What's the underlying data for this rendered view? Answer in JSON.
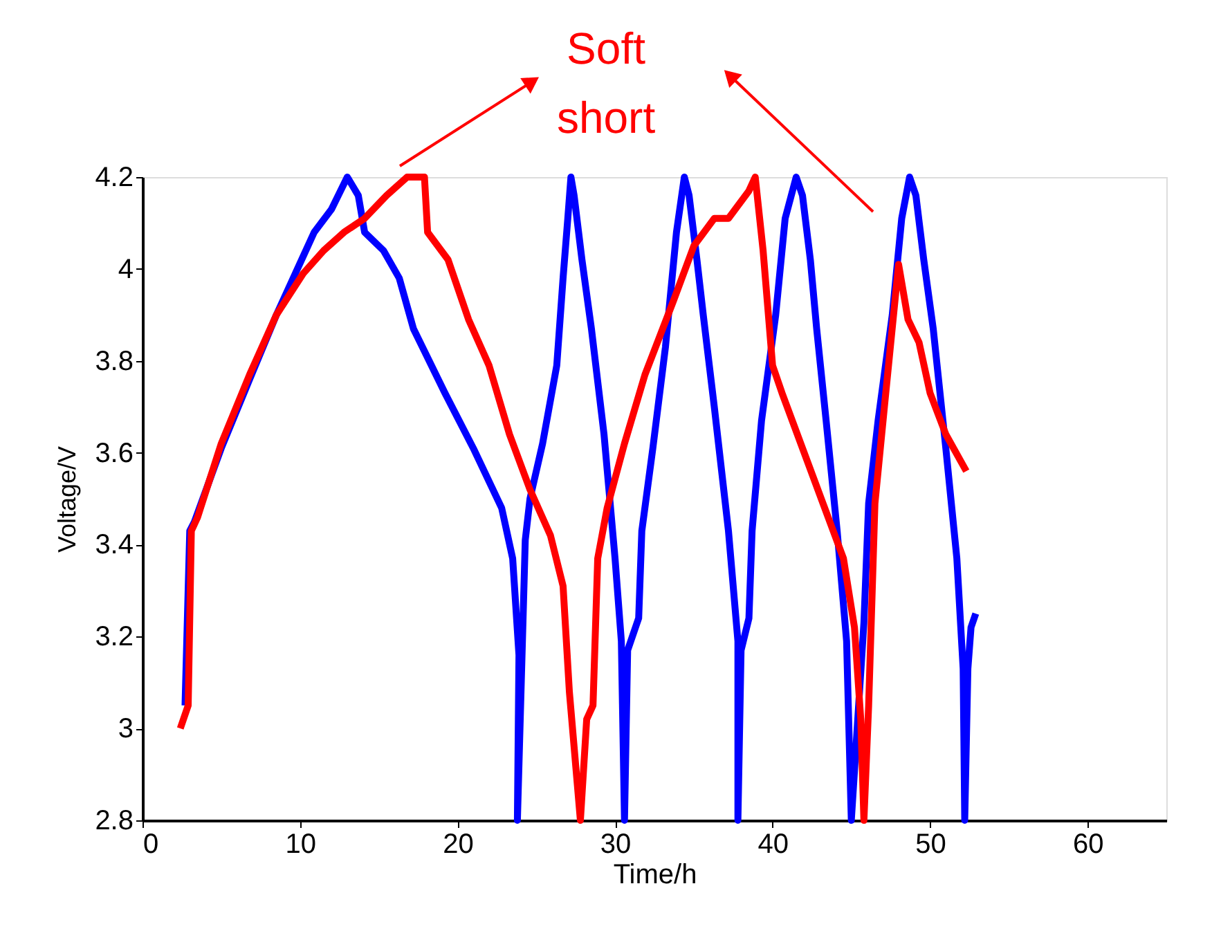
{
  "chart_data": {
    "type": "line",
    "xlabel": "Time/h",
    "ylabel": "Voltage/V",
    "xlim": [
      0,
      65
    ],
    "xticks": [
      0,
      10,
      20,
      30,
      40,
      50,
      60
    ],
    "ylim": [
      2.8,
      4.2
    ],
    "yticks": [
      2.8,
      3,
      3.2,
      3.4,
      3.6,
      3.8,
      4,
      4.2
    ],
    "grid": false,
    "legend": false,
    "marker": "none",
    "line_style": "solid",
    "annotations": [
      "Soft short"
    ],
    "series": [
      {
        "color": "#0000ff",
        "x": [
          2.7,
          3.0,
          3.3,
          5.0,
          6.8,
          8.5,
          10.1,
          10.9,
          12.0,
          13.0,
          13.7,
          14.1,
          15.3,
          16.3,
          17.2,
          19.2,
          21.0,
          22.8,
          23.5,
          23.9,
          23.8,
          24.3,
          24.6,
          25.4,
          26.3,
          26.7,
          27.0,
          27.2,
          27.4,
          27.9,
          28.5,
          29.3,
          30.0,
          30.4,
          30.6,
          30.8,
          31.5,
          31.7,
          32.4,
          33.2,
          33.9,
          34.4,
          34.7,
          35.2,
          35.6,
          36.3,
          37.2,
          37.8,
          37.8,
          38.0,
          38.5,
          38.7,
          39.3,
          40.2,
          40.8,
          41.5,
          41.9,
          42.4,
          42.8,
          43.4,
          44.1,
          44.7,
          45.0,
          45.8,
          46.1,
          46.7,
          47.6,
          48.2,
          48.7,
          49.1,
          49.6,
          50.2,
          51.0,
          51.7,
          52.1,
          52.2,
          52.4,
          52.6,
          52.9
        ],
        "values": [
          3.05,
          3.43,
          3.45,
          3.61,
          3.76,
          3.9,
          4.02,
          4.08,
          4.13,
          4.2,
          4.16,
          4.08,
          4.04,
          3.98,
          3.87,
          3.73,
          3.61,
          3.48,
          3.37,
          3.16,
          2.8,
          3.41,
          3.5,
          3.62,
          3.79,
          3.98,
          4.11,
          4.2,
          4.16,
          4.02,
          3.87,
          3.64,
          3.37,
          3.19,
          2.8,
          3.17,
          3.24,
          3.43,
          3.61,
          3.83,
          4.08,
          4.2,
          4.16,
          4.02,
          3.9,
          3.7,
          3.43,
          3.19,
          2.8,
          3.17,
          3.24,
          3.43,
          3.67,
          3.9,
          4.11,
          4.2,
          4.16,
          4.02,
          3.87,
          3.67,
          3.43,
          3.19,
          2.8,
          3.23,
          3.49,
          3.67,
          3.9,
          4.11,
          4.2,
          4.16,
          4.02,
          3.87,
          3.61,
          3.37,
          3.13,
          2.8,
          3.13,
          3.22,
          3.25
        ]
      },
      {
        "color": "#ff0000",
        "x": [
          2.4,
          2.9,
          3.1,
          3.5,
          5.0,
          6.8,
          8.5,
          10.2,
          11.5,
          12.8,
          14.1,
          15.5,
          16.8,
          17.9,
          18.1,
          19.4,
          20.7,
          22.0,
          23.3,
          24.6,
          25.9,
          26.7,
          27.1,
          27.8,
          28.2,
          28.6,
          28.9,
          29.5,
          30.6,
          31.9,
          33.7,
          35.0,
          36.3,
          37.2,
          38.5,
          38.9,
          39.4,
          40.0,
          40.6,
          41.9,
          43.2,
          44.5,
          45.2,
          45.6,
          45.8,
          46.1,
          46.5,
          47.1,
          48.0,
          48.6,
          49.3,
          50.0,
          51.0,
          52.3
        ],
        "values": [
          3.0,
          3.05,
          3.43,
          3.46,
          3.62,
          3.77,
          3.9,
          3.99,
          4.04,
          4.08,
          4.11,
          4.16,
          4.2,
          4.2,
          4.08,
          4.02,
          3.89,
          3.79,
          3.64,
          3.52,
          3.42,
          3.31,
          3.08,
          2.8,
          3.02,
          3.05,
          3.37,
          3.48,
          3.62,
          3.77,
          3.93,
          4.05,
          4.11,
          4.11,
          4.17,
          4.2,
          4.04,
          3.79,
          3.73,
          3.61,
          3.49,
          3.37,
          3.22,
          3.02,
          2.8,
          3.05,
          3.49,
          3.7,
          4.01,
          3.89,
          3.84,
          3.73,
          3.64,
          3.56
        ]
      }
    ]
  }
}
